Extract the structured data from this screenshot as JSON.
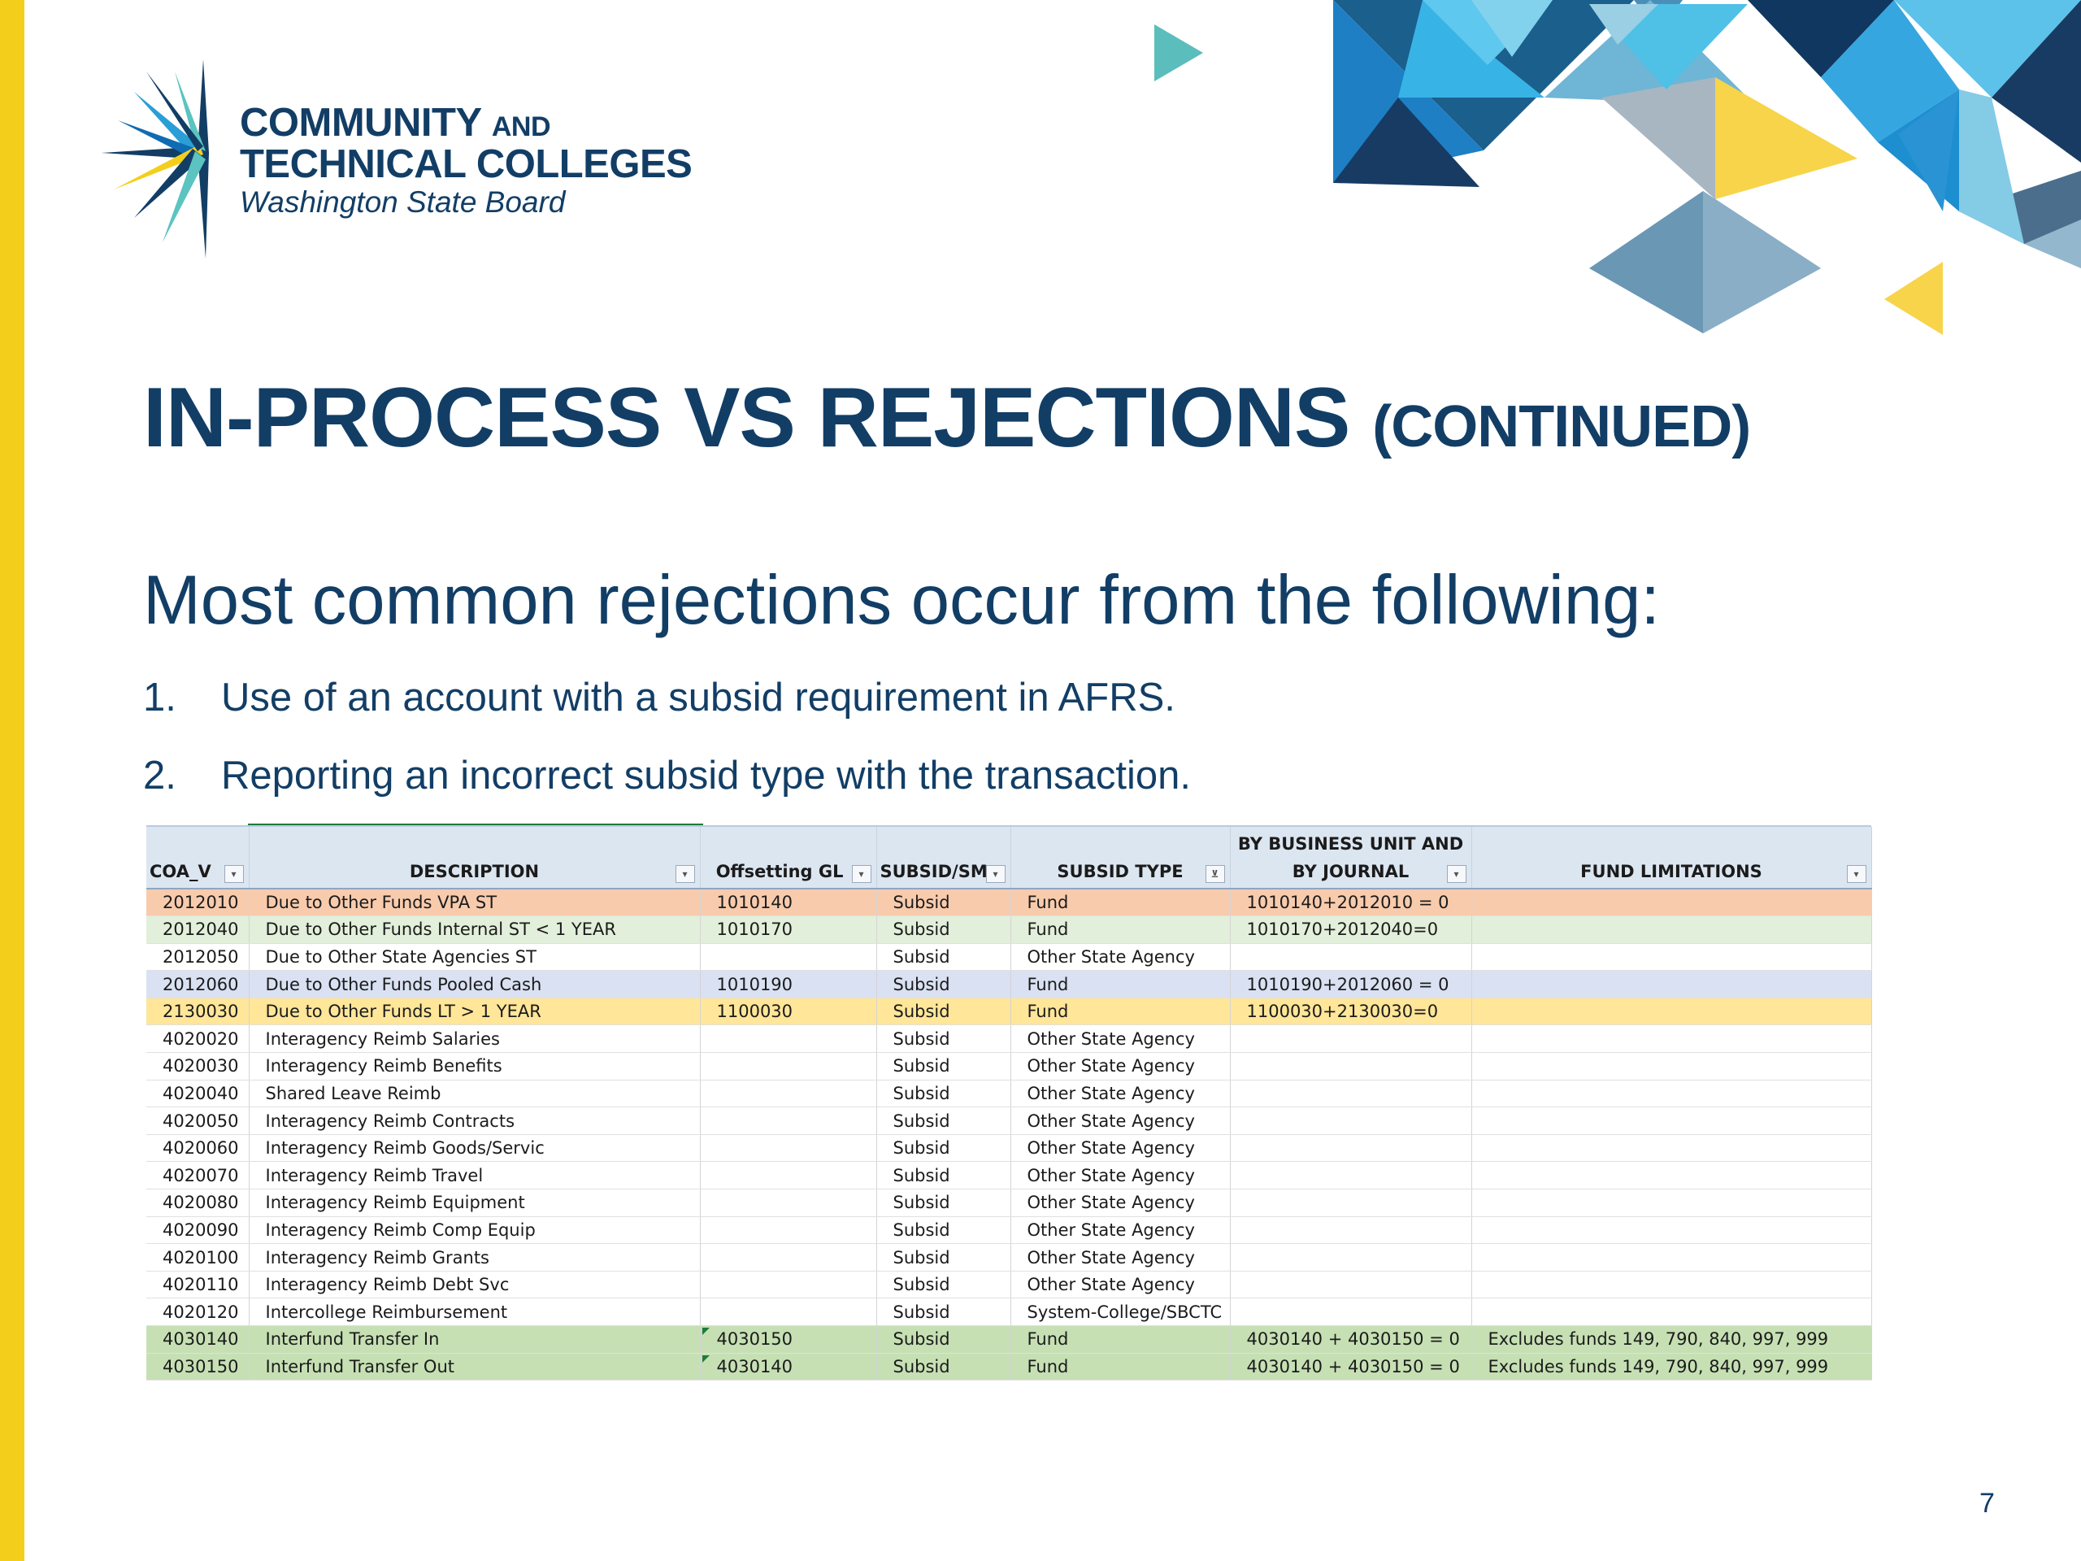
{
  "logo": {
    "line1_main": "COMMUNITY",
    "line1_small": "AND",
    "line2": "TECHNICAL COLLEGES",
    "line3": "Washington State Board"
  },
  "slide": {
    "title_main": "IN-PROCESS  VS REJECTIONS",
    "title_continued": "(CONTINUED)",
    "subtitle": "Most common rejections occur from the following:",
    "list": [
      {
        "num": "1.",
        "text": "Use of an account with a subsid requirement in AFRS."
      },
      {
        "num": "2.",
        "text": "Reporting an incorrect subsid type with the transaction."
      }
    ],
    "page_number": "7"
  },
  "colors": {
    "navy": "#123e66",
    "side_bar_yellow": "#f3cf1c",
    "row_salmon": "#f8cbad",
    "row_green": "#e2efda",
    "row_blue": "#d9e1f2",
    "row_yellow": "#ffe699",
    "row_bright_green": "#c6e0b4"
  },
  "spreadsheet": {
    "headers": [
      {
        "label": "COA_V",
        "line2": ""
      },
      {
        "label": "DESCRIPTION",
        "line2": ""
      },
      {
        "label": "Offsetting GL",
        "line2": ""
      },
      {
        "label": "SUBSID/SM",
        "line2": ""
      },
      {
        "label": "SUBSID TYPE",
        "line2": ""
      },
      {
        "label": "BY BUSINESS UNIT AND",
        "line2": "BY JOURNAL"
      },
      {
        "label": "FUND LIMITATIONS",
        "line2": ""
      }
    ],
    "filter_icons": [
      "dropdown-arrow-icon",
      "dropdown-arrow-icon",
      "dropdown-arrow-icon",
      "dropdown-arrow-icon",
      "filter-applied-icon",
      "dropdown-arrow-icon",
      "dropdown-arrow-icon"
    ],
    "rows": [
      {
        "style": "salmon",
        "cells": [
          "2012010",
          "Due to Other Funds VPA ST",
          "1010140",
          "Subsid",
          "Fund",
          "1010140+2012010 = 0",
          ""
        ]
      },
      {
        "style": "green",
        "cells": [
          "2012040",
          "Due to Other Funds Internal ST < 1 YEAR",
          "1010170",
          "Subsid",
          "Fund",
          "1010170+2012040=0",
          ""
        ]
      },
      {
        "style": "plain",
        "cells": [
          "2012050",
          "Due to Other State Agencies ST",
          "",
          "Subsid",
          "Other State Agency",
          "",
          ""
        ]
      },
      {
        "style": "blue",
        "cells": [
          "2012060",
          "Due to Other Funds Pooled Cash",
          "1010190",
          "Subsid",
          "Fund",
          "1010190+2012060 = 0",
          ""
        ]
      },
      {
        "style": "yellow",
        "cells": [
          "2130030",
          "Due to Other Funds LT > 1 YEAR",
          "1100030",
          "Subsid",
          "Fund",
          "1100030+2130030=0",
          ""
        ]
      },
      {
        "style": "plain",
        "cells": [
          "4020020",
          "Interagency Reimb Salaries",
          "",
          "Subsid",
          "Other State Agency",
          "",
          ""
        ]
      },
      {
        "style": "plain",
        "cells": [
          "4020030",
          "Interagency Reimb Benefits",
          "",
          "Subsid",
          "Other State Agency",
          "",
          ""
        ]
      },
      {
        "style": "plain",
        "cells": [
          "4020040",
          "Shared Leave Reimb",
          "",
          "Subsid",
          "Other State Agency",
          "",
          ""
        ]
      },
      {
        "style": "plain",
        "cells": [
          "4020050",
          "Interagency Reimb Contracts",
          "",
          "Subsid",
          "Other State Agency",
          "",
          ""
        ]
      },
      {
        "style": "plain",
        "cells": [
          "4020060",
          "Interagency Reimb Goods/Servic",
          "",
          "Subsid",
          "Other State Agency",
          "",
          ""
        ]
      },
      {
        "style": "plain",
        "cells": [
          "4020070",
          "Interagency Reimb Travel",
          "",
          "Subsid",
          "Other State Agency",
          "",
          ""
        ]
      },
      {
        "style": "plain",
        "cells": [
          "4020080",
          "Interagency Reimb Equipment",
          "",
          "Subsid",
          "Other State Agency",
          "",
          ""
        ]
      },
      {
        "style": "plain",
        "cells": [
          "4020090",
          "Interagency Reimb Comp Equip",
          "",
          "Subsid",
          "Other State Agency",
          "",
          ""
        ]
      },
      {
        "style": "plain",
        "cells": [
          "4020100",
          "Interagency Reimb Grants",
          "",
          "Subsid",
          "Other State Agency",
          "",
          ""
        ]
      },
      {
        "style": "plain",
        "cells": [
          "4020110",
          "Interagency Reimb Debt Svc",
          "",
          "Subsid",
          "Other State Agency",
          "",
          ""
        ]
      },
      {
        "style": "plain",
        "cells": [
          "4020120",
          "Intercollege Reimbursement",
          "",
          "Subsid",
          "System-College/SBCTC",
          "",
          ""
        ]
      },
      {
        "style": "bgreen",
        "cells": [
          "4030140",
          "Interfund Transfer In",
          "4030150",
          "Subsid",
          "Fund",
          "4030140 + 4030150 = 0",
          "Excludes funds 149, 790, 840, 997, 999"
        ]
      },
      {
        "style": "bgreen",
        "cells": [
          "4030150",
          "Interfund Transfer Out",
          "4030140",
          "Subsid",
          "Fund",
          "4030140 + 4030150 = 0",
          "Excludes funds 149, 790, 840, 997, 999"
        ]
      }
    ]
  }
}
